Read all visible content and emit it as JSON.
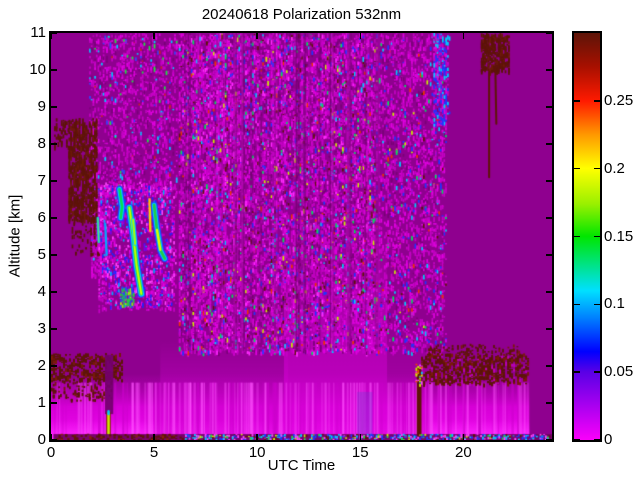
{
  "chart_data": {
    "type": "heatmap",
    "title": "20240618 Polarization 532nm",
    "xlabel": "UTC Time",
    "ylabel": "Altitude [km]",
    "x_range": [
      0,
      24.3
    ],
    "y_range": [
      0,
      11
    ],
    "color_range": [
      0,
      0.3
    ],
    "xticks": [
      0,
      5,
      10,
      15,
      20
    ],
    "xtick_labels": [
      "0",
      "5",
      "10",
      "15",
      "20"
    ],
    "yticks": [
      0,
      1,
      2,
      3,
      4,
      5,
      6,
      7,
      8,
      9,
      10,
      11
    ],
    "ytick_labels": [
      "0",
      "1",
      "2",
      "3",
      "4",
      "5",
      "6",
      "7",
      "8",
      "9",
      "10",
      "11"
    ],
    "colorbar": {
      "ticks": [
        0,
        0.05,
        0.1,
        0.15,
        0.2,
        0.25
      ],
      "labels": [
        "0",
        "0.05",
        "0.1",
        "0.15",
        "0.2",
        "0.25"
      ]
    },
    "colormap": [
      [
        0.0,
        "#FA00FA"
      ],
      [
        0.167,
        "#5A00E6"
      ],
      [
        0.217,
        "#0000FF"
      ],
      [
        0.3,
        "#0080FF"
      ],
      [
        0.367,
        "#00E0FF"
      ],
      [
        0.5,
        "#00E600"
      ],
      [
        0.58,
        "#9AF000"
      ],
      [
        0.667,
        "#FFFF00"
      ],
      [
        0.75,
        "#FF9900"
      ],
      [
        0.833,
        "#FF1A00"
      ],
      [
        0.917,
        "#A81000"
      ],
      [
        1.0,
        "#5E1408"
      ]
    ],
    "background_color": "#8F008F",
    "render_seed": 424242,
    "features": [
      {
        "type": "rect",
        "t": [
          0,
          24.3
        ],
        "alt": [
          0,
          11
        ],
        "color": "#8F008F",
        "alpha": 1
      },
      {
        "type": "vgrad",
        "t": [
          0,
          23.2
        ],
        "alt": [
          0,
          1.8
        ],
        "stops": [
          [
            0,
            "#F60AF6",
            0.95
          ],
          [
            0.5,
            "#E300E3",
            0.85
          ],
          [
            0.85,
            "#C000C0",
            0.35
          ],
          [
            1,
            "#C000C0",
            0
          ]
        ]
      },
      {
        "type": "vgrad",
        "t": [
          0,
          23.2
        ],
        "alt": [
          0,
          0.55
        ],
        "stops": [
          [
            0,
            "#FF2BFF",
            0.9
          ],
          [
            1,
            "#FF2BFF",
            0
          ]
        ]
      },
      {
        "type": "vgrad",
        "t": [
          5.3,
          11.5
        ],
        "alt": [
          0,
          2.7
        ],
        "stops": [
          [
            0,
            "#D800D8",
            0.6
          ],
          [
            0.7,
            "#CC00CC",
            0.3
          ],
          [
            1,
            "#CC00CC",
            0
          ]
        ]
      },
      {
        "type": "vgrad",
        "t": [
          11.3,
          16.3
        ],
        "alt": [
          0.15,
          5.8
        ],
        "stops": [
          [
            0,
            "#DD00DD",
            0.75
          ],
          [
            0.6,
            "#CE00CE",
            0.45
          ],
          [
            1,
            "#CE00CE",
            0
          ]
        ]
      },
      {
        "type": "vgrad",
        "t": [
          16.3,
          18.4
        ],
        "alt": [
          0.15,
          3.2
        ],
        "stops": [
          [
            0,
            "#D400D4",
            0.55
          ],
          [
            1,
            "#D400D4",
            0
          ]
        ]
      },
      {
        "type": "vstripes",
        "t": [
          0.1,
          23.1
        ],
        "alt": [
          0,
          1.55
        ],
        "count": 260,
        "width": [
          1,
          2.6
        ],
        "palette": [
          [
            "#FF55FF",
            0.55
          ],
          [
            "#CC00CC",
            0.45
          ]
        ],
        "alpha": [
          0.2,
          0.55
        ]
      },
      {
        "type": "speckle",
        "t": [
          1.85,
          6.2
        ],
        "alt": [
          6.6,
          11
        ],
        "count": 1500,
        "cell": [
          1.7,
          2.4
        ],
        "palette": [
          [
            "#C400C4",
            0.5
          ],
          [
            "#DF00DF",
            0.28
          ],
          [
            "#7A007A",
            0.12
          ],
          [
            "#3344FF",
            0.04
          ],
          [
            "#00CCFF",
            0.03
          ],
          [
            "#22DD44",
            0.02
          ],
          [
            "#CC2222",
            0.01
          ]
        ]
      },
      {
        "type": "speckle",
        "t": [
          1.95,
          2.75
        ],
        "alt": [
          4.4,
          6.8
        ],
        "count": 260,
        "cell": [
          1.7,
          2.4
        ],
        "palette": [
          [
            "#C400C4",
            0.6
          ],
          [
            "#DF00DF",
            0.3
          ],
          [
            "#3344FF",
            0.05
          ],
          [
            "#00CCFF",
            0.05
          ]
        ]
      },
      {
        "type": "speckle",
        "t": [
          6.2,
          15.9
        ],
        "alt": [
          2.35,
          11
        ],
        "count": 12500,
        "cell": [
          1.7,
          2.6
        ],
        "palette": [
          [
            "#C400C4",
            0.4
          ],
          [
            "#DF00DF",
            0.24
          ],
          [
            "#FF2BFF",
            0.07
          ],
          [
            "#7A0078",
            0.14
          ],
          [
            "#2233FF",
            0.045
          ],
          [
            "#00CCFF",
            0.025
          ],
          [
            "#00E060",
            0.02
          ],
          [
            "#CCEE00",
            0.015
          ],
          [
            "#EE3300",
            0.012
          ],
          [
            "#5E1408",
            0.013
          ]
        ]
      },
      {
        "type": "speckle",
        "t": [
          15.9,
          19.2
        ],
        "alt": [
          2.35,
          11
        ],
        "count": 2400,
        "cell": [
          1.7,
          2.6
        ],
        "palette": [
          [
            "#C400C4",
            0.48
          ],
          [
            "#DF00DF",
            0.27
          ],
          [
            "#7A0078",
            0.12
          ],
          [
            "#2233FF",
            0.05
          ],
          [
            "#00CCFF",
            0.03
          ],
          [
            "#00E060",
            0.02
          ],
          [
            "#CCEE00",
            0.01
          ],
          [
            "#EE3300",
            0.01
          ],
          [
            "#5E1408",
            0.01
          ]
        ]
      },
      {
        "type": "speckle",
        "t": [
          18.55,
          19.35
        ],
        "alt": [
          8.5,
          11
        ],
        "count": 260,
        "cell": [
          1.7,
          2.6
        ],
        "palette": [
          [
            "#2233FF",
            0.35
          ],
          [
            "#00CCFF",
            0.18
          ],
          [
            "#C400C4",
            0.32
          ],
          [
            "#DF00DF",
            0.15
          ]
        ]
      },
      {
        "type": "vstripes",
        "t": [
          6.3,
          15.9
        ],
        "alt": [
          2.4,
          11
        ],
        "count": 20,
        "width": [
          1.3,
          3.2
        ],
        "palette": [
          [
            "#70006E",
            1
          ]
        ],
        "alpha": [
          0.3,
          0.65
        ]
      },
      {
        "type": "vstripes",
        "t": [
          6.3,
          15.9
        ],
        "alt": [
          2.4,
          11
        ],
        "count": 24,
        "width": [
          1.3,
          3
        ],
        "palette": [
          [
            "#E816E8",
            1
          ]
        ],
        "alpha": [
          0.12,
          0.3
        ]
      },
      {
        "type": "speckle",
        "t": [
          0,
          3.5
        ],
        "alt": [
          1.6,
          2.35
        ],
        "count": 430,
        "cell": [
          2,
          2.2
        ],
        "palette": [
          [
            "#5E1408",
            0.72
          ],
          [
            "#7A1A08",
            0.18
          ],
          [
            "#8F008F",
            0.1
          ]
        ]
      },
      {
        "type": "speckle",
        "t": [
          0,
          3.0
        ],
        "alt": [
          1.05,
          1.65
        ],
        "count": 120,
        "cell": [
          1.8,
          2
        ],
        "palette": [
          [
            "#5E1408",
            0.8
          ],
          [
            "#7A1A08",
            0.2
          ]
        ]
      },
      {
        "type": "speckle",
        "t": [
          17.95,
          23.2
        ],
        "alt": [
          1.5,
          2.35
        ],
        "count": 700,
        "cell": [
          2,
          2.2
        ],
        "palette": [
          [
            "#5E1408",
            0.7
          ],
          [
            "#7A1A08",
            0.2
          ],
          [
            "#B800B8",
            0.1
          ]
        ]
      },
      {
        "type": "speckle",
        "t": [
          18.3,
          22.8
        ],
        "alt": [
          2.3,
          2.6
        ],
        "count": 90,
        "cell": [
          1.8,
          2
        ],
        "palette": [
          [
            "#5E1408",
            0.9
          ],
          [
            "#7A1A08",
            0.1
          ]
        ]
      },
      {
        "type": "speckle",
        "t": [
          0.85,
          2.3
        ],
        "alt": [
          5.95,
          8.7
        ],
        "count": 620,
        "cell": [
          1.7,
          3.4
        ],
        "palette": [
          [
            "#5E1408",
            0.78
          ],
          [
            "#6E1A0A",
            0.22
          ]
        ]
      },
      {
        "type": "speckle",
        "t": [
          0.15,
          0.95
        ],
        "alt": [
          7.9,
          8.7
        ],
        "count": 60,
        "cell": [
          1.7,
          2.4
        ],
        "palette": [
          [
            "#5E1408",
            1
          ]
        ]
      },
      {
        "type": "speckle",
        "t": [
          1.0,
          2.45
        ],
        "alt": [
          5.0,
          6.0
        ],
        "count": 60,
        "cell": [
          1.7,
          2.4
        ],
        "palette": [
          [
            "#5E1408",
            1
          ]
        ]
      },
      {
        "type": "speckle",
        "t": [
          20.85,
          22.3
        ],
        "alt": [
          9.95,
          11
        ],
        "count": 330,
        "cell": [
          1.7,
          3
        ],
        "palette": [
          [
            "#5E1408",
            0.8
          ],
          [
            "#6E1A0A",
            0.2
          ]
        ]
      },
      {
        "type": "streak",
        "pts": [
          [
            21.25,
            9.95
          ],
          [
            21.25,
            7.1
          ]
        ],
        "layers": [
          [
            "#5E1408",
            2
          ]
        ]
      },
      {
        "type": "streak",
        "pts": [
          [
            21.55,
            10.1
          ],
          [
            21.6,
            8.55
          ]
        ],
        "layers": [
          [
            "#5E1408",
            2
          ]
        ]
      },
      {
        "type": "speckle",
        "t": [
          2.3,
          6.1
        ],
        "alt": [
          3.5,
          7.0
        ],
        "count": 1050,
        "cell": [
          1.7,
          2.4
        ],
        "palette": [
          [
            "#C400C4",
            0.45
          ],
          [
            "#E200E2",
            0.33
          ],
          [
            "#FF44FF",
            0.22
          ]
        ]
      },
      {
        "type": "speckle",
        "t": [
          2.4,
          5.95
        ],
        "alt": [
          3.55,
          6.9
        ],
        "count": 330,
        "cell": [
          1.6,
          2.2
        ],
        "palette": [
          [
            "#2222FF",
            0.4
          ],
          [
            "#00AAFF",
            0.28
          ],
          [
            "#7700EE",
            0.32
          ]
        ]
      },
      {
        "type": "speckle",
        "t": [
          3.35,
          4.05
        ],
        "alt": [
          3.6,
          4.15
        ],
        "count": 90,
        "cell": [
          1.6,
          2
        ],
        "palette": [
          [
            "#22CC44",
            0.5
          ],
          [
            "#2244FF",
            0.3
          ],
          [
            "#AAEE00",
            0.2
          ]
        ]
      },
      {
        "type": "streak",
        "pts": [
          [
            3.32,
            6.78
          ],
          [
            3.45,
            6.3
          ],
          [
            3.38,
            6.0
          ]
        ],
        "layers": [
          [
            "#2040FF",
            7
          ],
          [
            "#00CCFF",
            4.5
          ],
          [
            "#00E050",
            2.5
          ]
        ]
      },
      {
        "type": "streak",
        "pts": [
          [
            3.8,
            6.28
          ],
          [
            4.0,
            5.5
          ],
          [
            4.15,
            4.72
          ],
          [
            4.38,
            3.95
          ]
        ],
        "layers": [
          [
            "#2040FF",
            7.5
          ],
          [
            "#00CCFF",
            5.5
          ],
          [
            "#33DD33",
            3.5
          ],
          [
            "#CCFF00",
            1.8
          ]
        ]
      },
      {
        "type": "streak",
        "pts": [
          [
            3.98,
            5.95
          ],
          [
            4.08,
            5.3
          ]
        ],
        "layers": [
          [
            "#00CCFF",
            4
          ],
          [
            "#AAFF00",
            2
          ]
        ]
      },
      {
        "type": "streak",
        "pts": [
          [
            4.78,
            6.5
          ],
          [
            4.82,
            5.65
          ]
        ],
        "layers": [
          [
            "#FFC800",
            2.4
          ]
        ]
      },
      {
        "type": "streak",
        "pts": [
          [
            5.0,
            6.35
          ],
          [
            5.12,
            5.78
          ],
          [
            5.32,
            5.12
          ],
          [
            5.52,
            4.9
          ]
        ],
        "layers": [
          [
            "#2040FF",
            7
          ],
          [
            "#00CCFF",
            4.5
          ],
          [
            "#22CC44",
            2.6
          ]
        ]
      },
      {
        "type": "streak",
        "pts": [
          [
            5.14,
            5.68
          ],
          [
            5.3,
            5.14
          ]
        ],
        "layers": [
          [
            "#DDFF00",
            2.4
          ]
        ]
      },
      {
        "type": "streak",
        "pts": [
          [
            2.27,
            6.0
          ],
          [
            2.32,
            5.35
          ]
        ],
        "layers": [
          [
            "#00BBFF",
            2.6
          ],
          [
            "#55EE66",
            1.2
          ]
        ]
      },
      {
        "type": "streak",
        "pts": [
          [
            2.63,
            5.85
          ],
          [
            2.7,
            5.0
          ]
        ],
        "layers": [
          [
            "#00AAFF",
            2.2
          ]
        ]
      },
      {
        "type": "rect",
        "t": [
          2.62,
          3.02
        ],
        "alt": [
          0.7,
          2.3
        ],
        "color": "#74006E",
        "alpha": 0.92
      },
      {
        "type": "streak",
        "pts": [
          [
            2.79,
            0.1
          ],
          [
            2.79,
            0.72
          ]
        ],
        "layers": [
          [
            "#7A1A08",
            4.5
          ],
          [
            "#CCEE00",
            2.5
          ]
        ]
      },
      {
        "type": "streak",
        "pts": [
          [
            2.79,
            0.7
          ],
          [
            2.79,
            0.78
          ]
        ],
        "layers": [
          [
            "#00CCFF",
            2.5
          ]
        ]
      },
      {
        "type": "rect",
        "t": [
          17.74,
          17.97
        ],
        "alt": [
          0.05,
          1.95
        ],
        "color": "#5E1408",
        "alpha": 1
      },
      {
        "type": "speckle",
        "t": [
          17.68,
          18.02
        ],
        "alt": [
          1.45,
          2.1
        ],
        "count": 26,
        "cell": [
          1.8,
          2
        ],
        "palette": [
          [
            "#CCEE00",
            0.3
          ],
          [
            "#00CCFF",
            0.25
          ],
          [
            "#EE4400",
            0.25
          ],
          [
            "#FF44FF",
            0.2
          ]
        ]
      },
      {
        "type": "rect",
        "t": [
          14.85,
          15.6
        ],
        "alt": [
          0,
          1.3
        ],
        "color": "#5544CC",
        "alpha": 0.3
      },
      {
        "type": "rect",
        "t": [
          0.12,
          24.3
        ],
        "alt": [
          0,
          0.16
        ],
        "color": "#6E0062",
        "alpha": 0.92
      },
      {
        "type": "speckle",
        "t": [
          0.15,
          6.5
        ],
        "alt": [
          0,
          0.17
        ],
        "count": 120,
        "cell": [
          2.2,
          1.6
        ],
        "palette": [
          [
            "#5E1408",
            0.85
          ],
          [
            "#8A2208",
            0.15
          ]
        ]
      },
      {
        "type": "speckle",
        "t": [
          6.5,
          24.25
        ],
        "alt": [
          0,
          0.17
        ],
        "count": 520,
        "cell": [
          1.8,
          1.6
        ],
        "palette": [
          [
            "#2233FF",
            0.3
          ],
          [
            "#00CCFF",
            0.2
          ],
          [
            "#FF44FF",
            0.25
          ],
          [
            "#5E1408",
            0.12
          ],
          [
            "#22DD44",
            0.07
          ],
          [
            "#CCEE00",
            0.06
          ]
        ]
      }
    ]
  }
}
